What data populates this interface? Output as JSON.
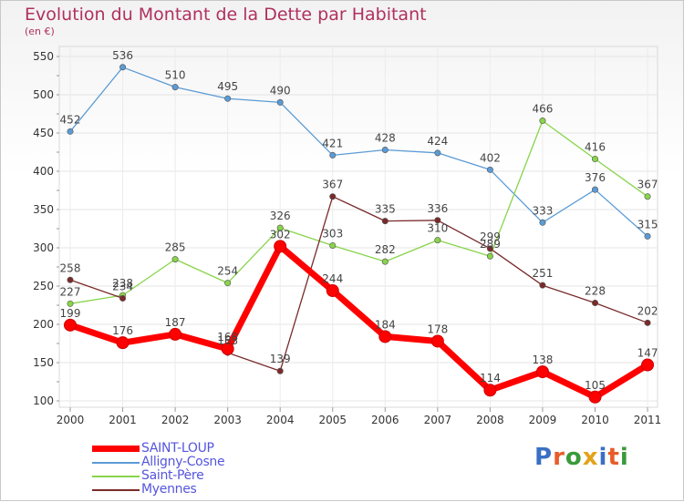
{
  "title": "Evolution du Montant de la Dette par Habitant",
  "subtitle": "(en €)",
  "logo": {
    "text": "Proxiti",
    "letter_colors": [
      "#3a6fc4",
      "#e85c2a",
      "#3a9a3a",
      "#e3a21a",
      "#3a6fc4",
      "#e85c2a",
      "#3a9a3a"
    ]
  },
  "chart_data": {
    "type": "line",
    "title": "Evolution du Montant de la Dette par Habitant",
    "subtitle": "(en €)",
    "xlabel": "",
    "ylabel": "",
    "x": [
      "2000",
      "2001",
      "2002",
      "2003",
      "2004",
      "2005",
      "2006",
      "2007",
      "2008",
      "2009",
      "2010",
      "2011"
    ],
    "ylim": [
      100,
      550
    ],
    "yticks": [
      "100",
      "150",
      "200",
      "250",
      "300",
      "350",
      "400",
      "450",
      "500",
      "550"
    ],
    "grid": true,
    "legend_position": "bottom-left",
    "series": [
      {
        "name": "Alligny-Cosne",
        "color": "#5b9bd5",
        "values": [
          452,
          536,
          510,
          495,
          490,
          421,
          428,
          424,
          402,
          333,
          376,
          315
        ]
      },
      {
        "name": "Saint-Père",
        "color": "#88d44a",
        "values": [
          227,
          238,
          285,
          254,
          326,
          303,
          282,
          310,
          289,
          466,
          416,
          367
        ]
      },
      {
        "name": "Myennes",
        "color": "#7a2a2a",
        "values": [
          258,
          234,
          null,
          163,
          139,
          367,
          335,
          336,
          299,
          251,
          228,
          202
        ]
      },
      {
        "name": "SAINT-LOUP",
        "color": "#ff0000",
        "values": [
          199,
          176,
          187,
          168,
          302,
          244,
          184,
          178,
          114,
          138,
          105,
          147
        ]
      }
    ],
    "data_labels": [
      {
        "x": "2000",
        "labels": [
          "452",
          "258",
          "227",
          "199"
        ]
      },
      {
        "x": "2001",
        "labels": [
          "536",
          "238",
          "234",
          "176"
        ]
      },
      {
        "x": "2002",
        "labels": [
          "510",
          "285",
          "187",
          "188"
        ]
      },
      {
        "x": "2003",
        "labels": [
          "495",
          "254",
          "163",
          "168"
        ]
      },
      {
        "x": "2004",
        "labels": [
          "490",
          "326",
          "302",
          "139"
        ]
      },
      {
        "x": "2005",
        "labels": [
          "421",
          "367",
          "303",
          "244"
        ]
      },
      {
        "x": "2006",
        "labels": [
          "428",
          "335",
          "282",
          "184"
        ]
      },
      {
        "x": "2007",
        "labels": [
          "424",
          "336",
          "310",
          "178"
        ]
      },
      {
        "x": "2008",
        "labels": [
          "402",
          "299",
          "289",
          "114"
        ]
      },
      {
        "x": "2009",
        "labels": [
          "466",
          "333",
          "251",
          "138"
        ]
      },
      {
        "x": "2010",
        "labels": [
          "416",
          "376",
          "228",
          "105"
        ]
      },
      {
        "x": "2011",
        "labels": [
          "367",
          "315",
          "202",
          "147"
        ]
      }
    ]
  },
  "legend": [
    {
      "name": "SAINT-LOUP",
      "color": "#ff0000",
      "weight": "thick"
    },
    {
      "name": "Alligny-Cosne",
      "color": "#5b9bd5",
      "weight": "thin"
    },
    {
      "name": "Saint-Père",
      "color": "#88d44a",
      "weight": "thin"
    },
    {
      "name": "Myennes",
      "color": "#7a2a2a",
      "weight": "thin"
    }
  ]
}
